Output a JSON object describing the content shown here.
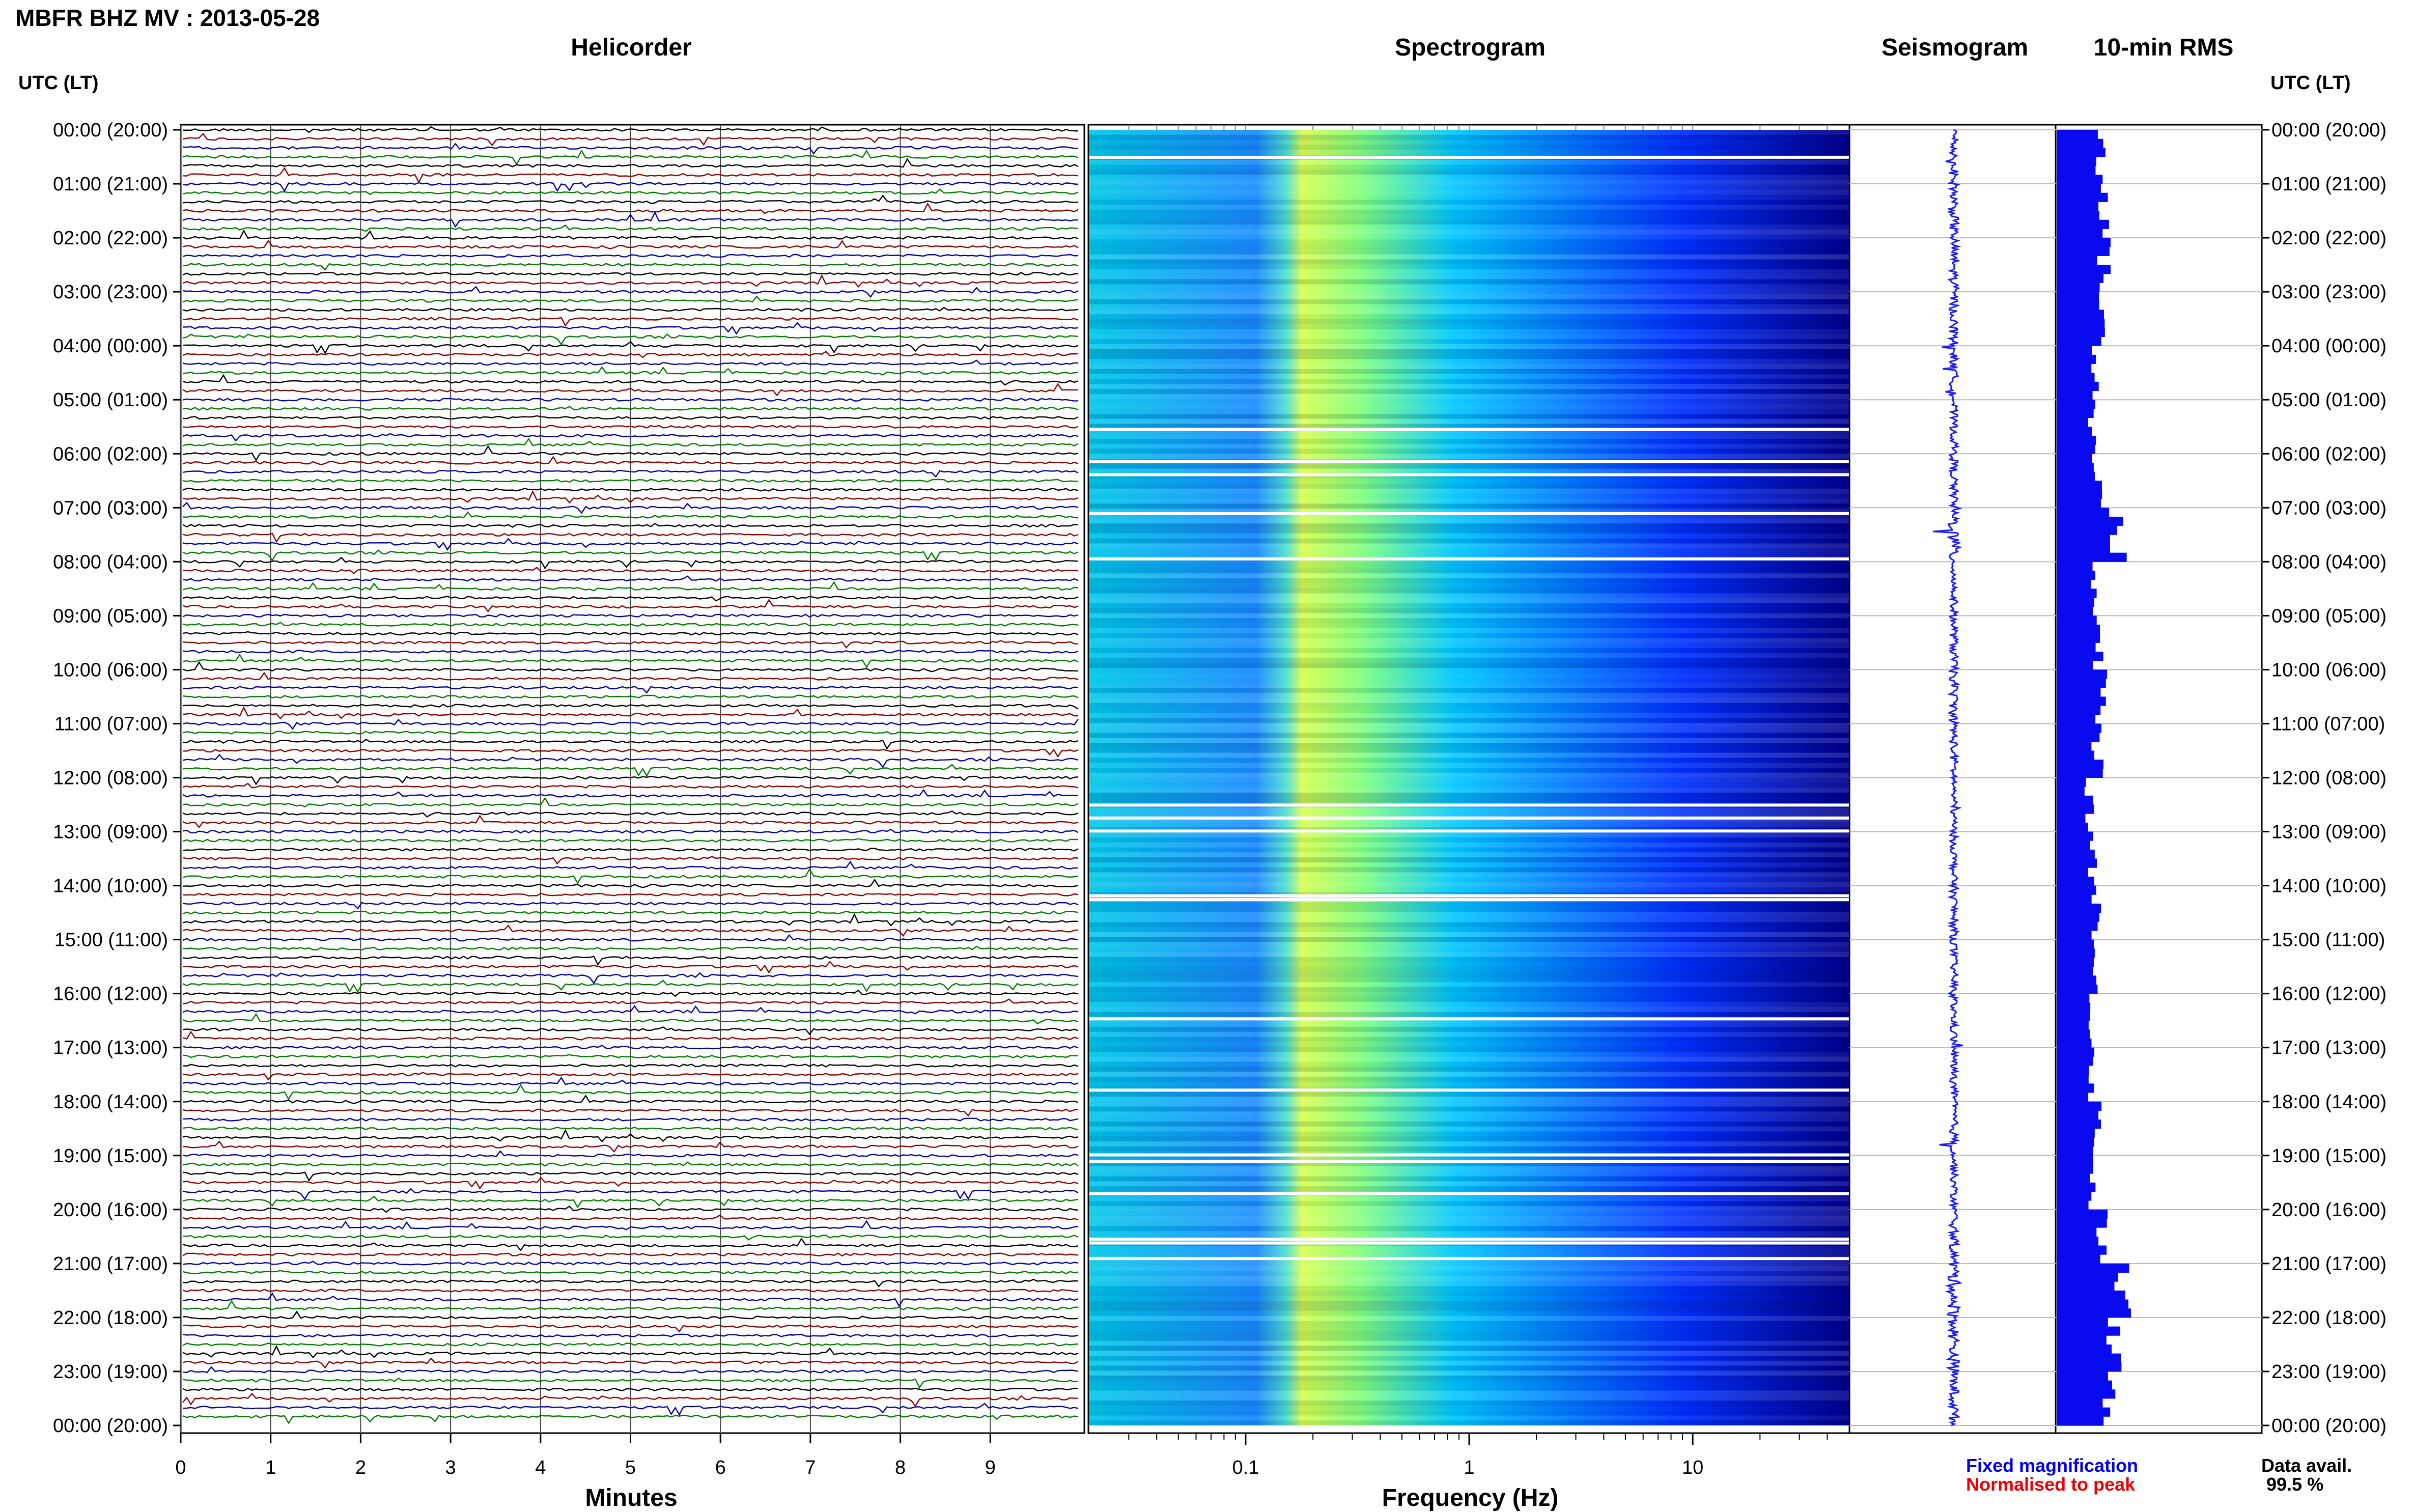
{
  "header": {
    "title": "MBFR BHZ MV : 2013-05-28",
    "tz_label": "UTC (LT)"
  },
  "panels": {
    "helicorder": "Helicorder",
    "spectrogram": "Spectrogram",
    "seismogram": "Seismogram",
    "rms": "10-min RMS"
  },
  "axes": {
    "minutes_label": "Minutes",
    "frequency_label": "Frequency (Hz)"
  },
  "legend": {
    "fixed": "Fixed magnification",
    "normalised": "Normalised to peak",
    "data_avail_label": "Data avail.",
    "data_avail_value": "99.5 %"
  },
  "colors": {
    "fixed": "#0000ee",
    "normalised": "#ee0000",
    "trace_cycle": [
      "#000000",
      "#8b0000",
      "#0000a0",
      "#007a00"
    ],
    "seismogram": "#1a1aff",
    "rms_bar": "#0a0af0"
  },
  "chart_data": [
    {
      "type": "line",
      "name": "helicorder",
      "xlabel": "Minutes",
      "x_ticks": [
        0,
        1,
        2,
        3,
        4,
        5,
        6,
        7,
        8,
        9
      ],
      "xlim": [
        0,
        10
      ],
      "row_labels": [
        "00:00 (20:00)",
        "01:00 (21:00)",
        "02:00 (22:00)",
        "03:00 (23:00)",
        "04:00 (00:00)",
        "05:00 (01:00)",
        "06:00 (02:00)",
        "07:00 (03:00)",
        "08:00 (04:00)",
        "09:00 (05:00)",
        "10:00 (06:00)",
        "11:00 (07:00)",
        "12:00 (08:00)",
        "13:00 (09:00)",
        "14:00 (10:00)",
        "15:00 (11:00)",
        "16:00 (12:00)",
        "17:00 (13:00)",
        "18:00 (14:00)",
        "19:00 (15:00)",
        "20:00 (16:00)",
        "21:00 (17:00)",
        "22:00 (18:00)",
        "23:00 (19:00)",
        "00:00 (20:00)"
      ],
      "traces_per_hour": 6
    },
    {
      "type": "heatmap",
      "name": "spectrogram",
      "xlabel": "Frequency (Hz)",
      "x_scale": "log",
      "xlim": [
        0.02,
        50
      ],
      "x_ticks": [
        "0.1",
        "1",
        "10"
      ],
      "colormap": [
        "#00008a",
        "#0000ff",
        "#0060ff",
        "#00c8ff",
        "#7fff7f",
        "#ffff00"
      ]
    },
    {
      "type": "line",
      "name": "seismogram"
    },
    {
      "type": "bar",
      "name": "10-min RMS",
      "orientation": "horizontal",
      "hour_values": [
        0.55,
        0.6,
        0.58,
        0.55,
        0.5,
        0.45,
        0.5,
        0.75,
        0.45,
        0.5,
        0.55,
        0.5,
        0.4,
        0.45,
        0.5,
        0.45,
        0.45,
        0.45,
        0.5,
        0.45,
        0.55,
        0.8,
        0.7,
        0.65
      ]
    }
  ]
}
